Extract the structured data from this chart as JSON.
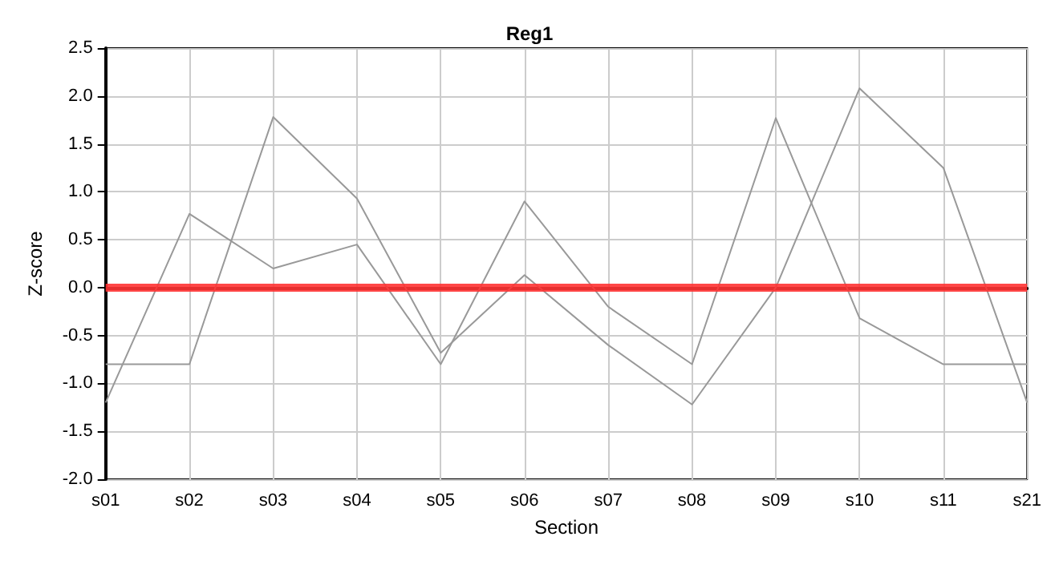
{
  "chart_data": {
    "type": "line",
    "title": "Reg1",
    "xlabel": "Section",
    "ylabel": "Z-score",
    "categories": [
      "s01",
      "s02",
      "s03",
      "s04",
      "s05",
      "s06",
      "s07",
      "s08",
      "s09",
      "s10",
      "s11",
      "s21"
    ],
    "series": [
      {
        "color": "#999999",
        "values": [
          -1.2,
          0.77,
          0.2,
          0.45,
          -0.8,
          0.9,
          -0.2,
          -0.8,
          1.77,
          -0.32,
          -0.8,
          -0.8
        ]
      },
      {
        "color": "#999999",
        "values": [
          -0.8,
          -0.8,
          1.78,
          0.93,
          -0.68,
          0.13,
          -0.6,
          -1.22,
          0.0,
          2.08,
          1.25,
          -1.2
        ]
      }
    ],
    "ylim": [
      -2.0,
      2.5
    ],
    "yticks": [
      {
        "value": -2,
        "label": "-2.0"
      },
      {
        "value": -1.5,
        "label": "-1.5"
      },
      {
        "value": -1,
        "label": "-1.0"
      },
      {
        "value": -0.5,
        "label": "-0.5"
      },
      {
        "value": 0,
        "label": "0.0"
      },
      {
        "value": 0.5,
        "label": "0.5"
      },
      {
        "value": 1,
        "label": "1.0"
      },
      {
        "value": 1.5,
        "label": "1.5"
      },
      {
        "value": 2,
        "label": "2.0"
      },
      {
        "value": 2.5,
        "label": "2.5"
      }
    ],
    "ref_lines": [
      {
        "axis": "y",
        "value": 0,
        "color": "#ff3333",
        "line_style": "solid"
      }
    ],
    "grid": true,
    "marker": "none",
    "line_style": "solid"
  }
}
